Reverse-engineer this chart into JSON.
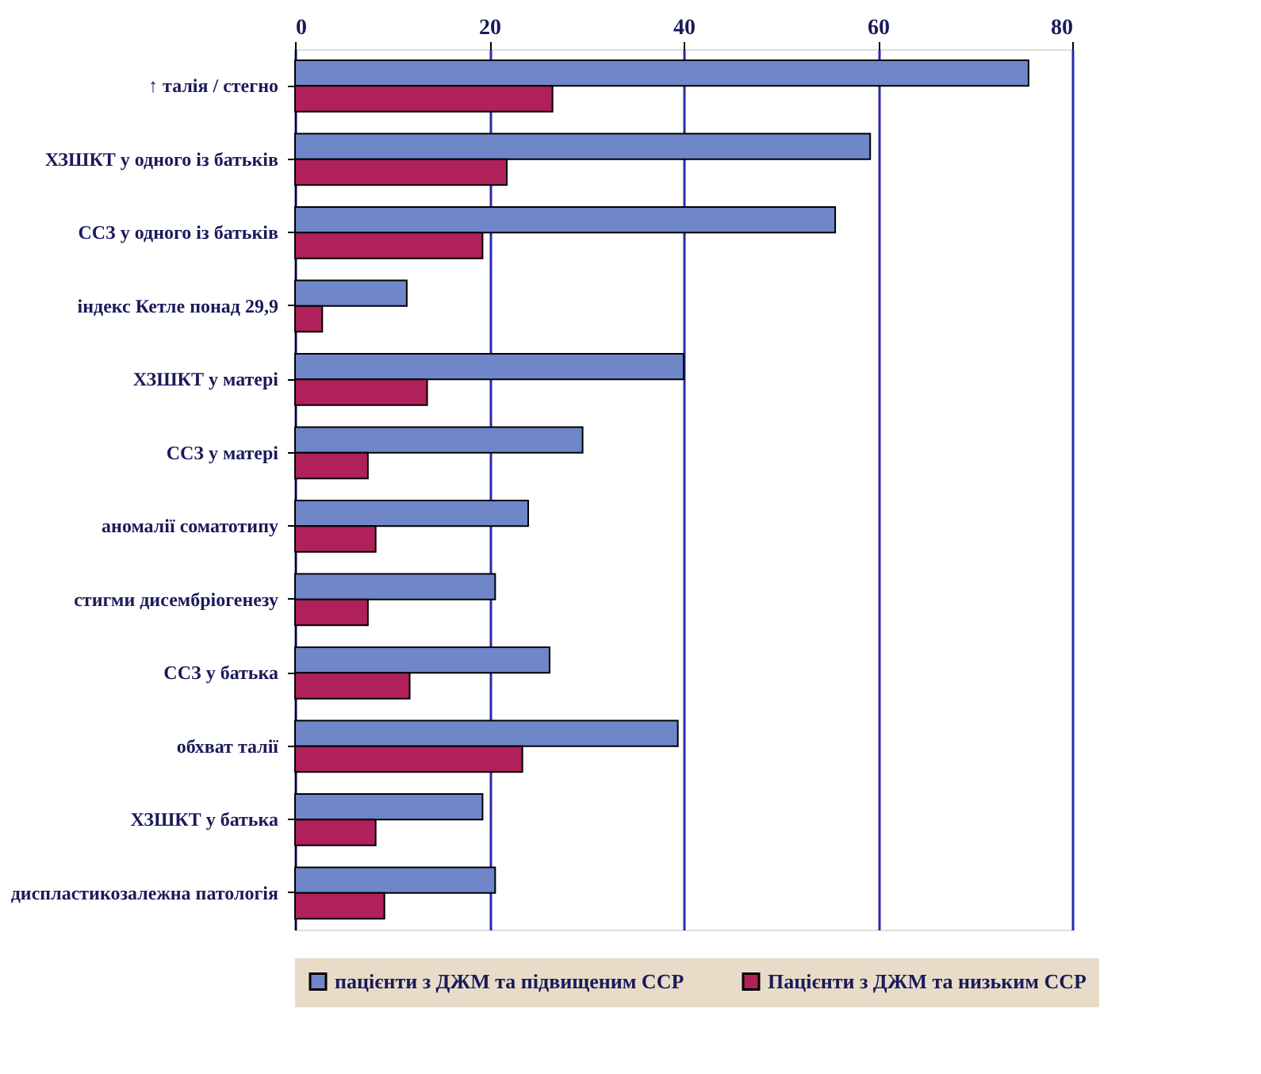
{
  "chart_data": {
    "type": "bar",
    "orientation": "horizontal",
    "categories": [
      "↑ талія / стегно",
      "ХЗШКТ у одного із батьків",
      "ССЗ у одного із батьків",
      "індекс Кетле понад 29,9",
      "ХЗШКТ у матері",
      "ССЗ у матері",
      "аномалії соматотипу",
      "стигми дисембріогенезу",
      "ССЗ у батька",
      "обхват талії",
      "ХЗШКТ у батька",
      "диспластикозалежна патологія"
    ],
    "series": [
      {
        "name": "пацієнти з ДЖМ та  підвищеним ССР",
        "color": "#6f86c9",
        "values": [
          75.5,
          59.2,
          55.6,
          11.5,
          40,
          29.6,
          24,
          20.6,
          26.2,
          39.4,
          19.3,
          20.6
        ]
      },
      {
        "name": "Пацієнти з ДЖМ та низьким ССР",
        "color": "#b0205a",
        "values": [
          26.5,
          21.8,
          19.3,
          2.8,
          13.6,
          7.5,
          8.3,
          7.5,
          11.8,
          23.4,
          8.3,
          9.2
        ]
      }
    ],
    "xlim": [
      0,
      80
    ],
    "xticks": [
      0,
      20,
      40,
      60,
      80
    ],
    "grid": "x",
    "legend": "bottom"
  }
}
